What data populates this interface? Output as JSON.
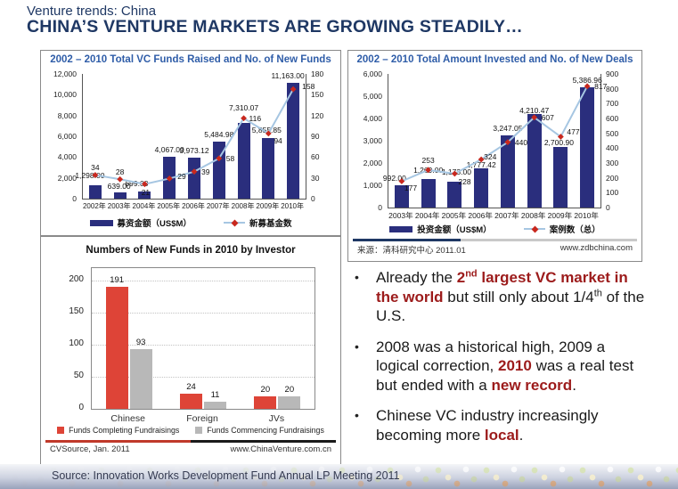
{
  "page": {
    "eyebrow": "Venture trends: China",
    "title": "CHINA’S VENTURE MARKETS ARE GROWING STEADILY…",
    "footer_source": "Source: Innovation Works Development Fund Annual LP Meeting 2011"
  },
  "colors": {
    "title_navy": "#1F3864",
    "chart_title_blue": "#2F5DA8",
    "bar_navy": "#2A2E7D",
    "line_blue": "#A6C6E2",
    "marker_red": "#C8281E",
    "bar_red": "#DE4437",
    "bar_gray": "#B8B8B8",
    "accent_red": "#9C1B1B"
  },
  "chart_data": [
    {
      "id": "funds_raised",
      "type": "bar+line",
      "title": "2002 – 2010 Total VC Funds Raised and No. of New Funds",
      "categories": [
        "2002年",
        "2003年",
        "2004年",
        "2005年",
        "2006年",
        "2007年",
        "2008年",
        "2009年",
        "2010年"
      ],
      "series": [
        {
          "name": "募资金额（US$M）",
          "type": "bar",
          "axis": "left",
          "values": [
            1298.0,
            639.0,
            699.0,
            4067.0,
            3973.12,
            5484.98,
            7310.07,
            5855.85,
            11163.0
          ],
          "labels": [
            "1,298.00",
            "639.00",
            "699.00",
            "4,067.00",
            "3,973.12",
            "5,484.98",
            "7,310.07",
            "5,855.85",
            "11,163.00"
          ]
        },
        {
          "name": "新募基金数",
          "type": "line",
          "axis": "right",
          "values": [
            34,
            28,
            21,
            29,
            39,
            58,
            116,
            94,
            158
          ]
        }
      ],
      "left_axis": {
        "min": 0,
        "max": 12000,
        "ticks": [
          "0",
          "2,000",
          "4,000",
          "6,000",
          "8,000",
          "10,000",
          "12,000"
        ]
      },
      "right_axis": {
        "min": 0,
        "max": 180,
        "ticks": [
          "0",
          "30",
          "60",
          "90",
          "120",
          "150",
          "180"
        ]
      },
      "legend_position": "bottom",
      "grid": false
    },
    {
      "id": "amount_invested",
      "type": "bar+line",
      "title": "2002 – 2010 Total Amount Invested and No. of New Deals",
      "categories": [
        "2003年",
        "2004年",
        "2005年",
        "2006年",
        "2007年",
        "2008年",
        "2009年",
        "2010年"
      ],
      "series": [
        {
          "name": "投资金额（US$M）",
          "type": "bar",
          "axis": "left",
          "values": [
            992.0,
            1269.0,
            1173.0,
            1777.42,
            3247.05,
            4210.47,
            2700.9,
            5386.96
          ],
          "labels": [
            "992.00",
            "1,269.00",
            "1,173.00",
            "1,777.42",
            "3,247.05",
            "4,210.47",
            "2,700.90",
            "5,386.96"
          ]
        },
        {
          "name": "案例数（总）",
          "type": "line",
          "axis": "right",
          "values": [
            177,
            253,
            228,
            324,
            440,
            607,
            477,
            817
          ]
        }
      ],
      "left_axis": {
        "min": 0,
        "max": 6000,
        "ticks": [
          "0",
          "1,000",
          "2,000",
          "3,000",
          "4,000",
          "5,000",
          "6,000"
        ]
      },
      "right_axis": {
        "min": 0,
        "max": 900,
        "ticks": [
          "0",
          "100",
          "200",
          "300",
          "400",
          "500",
          "600",
          "700",
          "800",
          "900"
        ]
      },
      "source_left": "来源：清科研究中心 2011.01",
      "source_right": "www.zdbchina.com",
      "legend_position": "bottom",
      "grid": false
    },
    {
      "id": "new_funds_by_investor",
      "type": "bar",
      "title": "Numbers of New Funds in 2010 by Investor",
      "categories": [
        "Chinese",
        "Foreign",
        "JVs"
      ],
      "series": [
        {
          "name": "Funds Completing Fundraisings",
          "values": [
            191,
            24,
            20
          ]
        },
        {
          "name": "Funds Commencing Fundraisings",
          "values": [
            93,
            11,
            20
          ]
        }
      ],
      "y_axis": {
        "min": 0,
        "max": 200,
        "tick_values": [
          0,
          50,
          100,
          150,
          200
        ],
        "ticks": [
          "0",
          "50",
          "100",
          "150",
          "200"
        ]
      },
      "source_left": "CVSource, Jan. 2011",
      "source_right": "www.ChinaVenture.com.cn",
      "legend_position": "bottom",
      "grid": true
    }
  ],
  "bullets": [
    {
      "segments": [
        {
          "t": "Already the "
        },
        {
          "t": "2",
          "em": true
        },
        {
          "t": "nd",
          "em": true,
          "sup": true
        },
        {
          "t": " largest VC market in the world",
          "em": true
        },
        {
          "t": " but still only about 1/4"
        },
        {
          "t": "th",
          "sup": true
        },
        {
          "t": " of the U.S."
        }
      ]
    },
    {
      "segments": [
        {
          "t": "2008 was a historical high, 2009 a logical correction, "
        },
        {
          "t": "2010",
          "em": true
        },
        {
          "t": " was a real test but ended with a "
        },
        {
          "t": "new record",
          "em": true
        },
        {
          "t": "."
        }
      ]
    },
    {
      "segments": [
        {
          "t": "Chinese VC industry increasingly becoming more "
        },
        {
          "t": "local",
          "em": true
        },
        {
          "t": "."
        }
      ]
    }
  ]
}
